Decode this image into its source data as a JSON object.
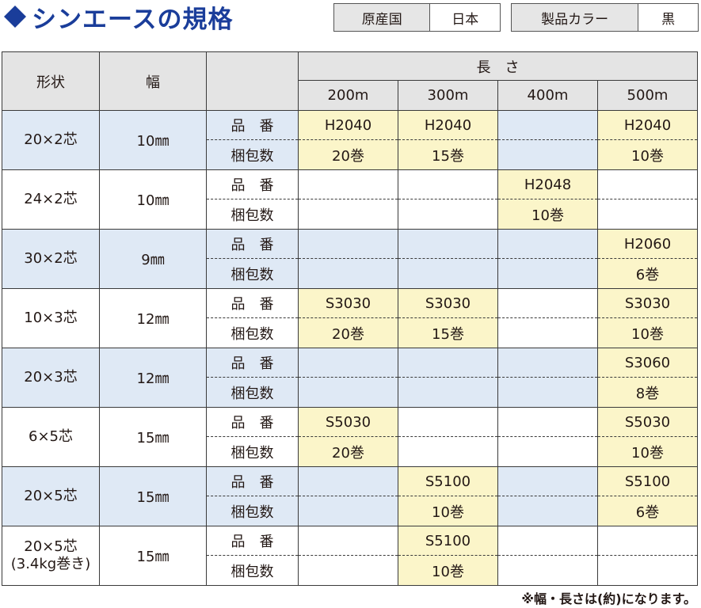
{
  "title": "シンエースの規格",
  "info": {
    "origin_label": "原産国",
    "origin_value": "日本",
    "color_label": "製品カラー",
    "color_value": "黒"
  },
  "table": {
    "headers": {
      "shape": "形状",
      "width": "幅",
      "length": "長　さ",
      "lengths": [
        "200m",
        "300m",
        "400m",
        "500m"
      ]
    },
    "row_labels": {
      "part": "品　番",
      "pack": "梱包数"
    },
    "rows": [
      {
        "shape": "20×2芯",
        "width": "10㎜",
        "shade": "blue",
        "part": [
          "H2040",
          "H2040",
          "",
          "H2040"
        ],
        "pack": [
          "20巻",
          "15巻",
          "",
          "10巻"
        ]
      },
      {
        "shape": "24×2芯",
        "width": "10㎜",
        "shade": "white",
        "part": [
          "",
          "",
          "H2048",
          ""
        ],
        "pack": [
          "",
          "",
          "10巻",
          ""
        ]
      },
      {
        "shape": "30×2芯",
        "width": "9㎜",
        "shade": "blue",
        "part": [
          "",
          "",
          "",
          "H2060"
        ],
        "pack": [
          "",
          "",
          "",
          "6巻"
        ]
      },
      {
        "shape": "10×3芯",
        "width": "12㎜",
        "shade": "white",
        "part": [
          "S3030",
          "S3030",
          "",
          "S3030"
        ],
        "pack": [
          "20巻",
          "15巻",
          "",
          "10巻"
        ]
      },
      {
        "shape": "20×3芯",
        "width": "12㎜",
        "shade": "blue",
        "part": [
          "",
          "",
          "",
          "S3060"
        ],
        "pack": [
          "",
          "",
          "",
          "8巻"
        ]
      },
      {
        "shape": "6×5芯",
        "width": "15㎜",
        "shade": "white",
        "part": [
          "S5030",
          "",
          "",
          "S5030"
        ],
        "pack": [
          "20巻",
          "",
          "",
          "10巻"
        ]
      },
      {
        "shape": "20×5芯",
        "width": "15㎜",
        "shade": "blue",
        "part": [
          "",
          "S5100",
          "",
          "S5100"
        ],
        "pack": [
          "",
          "10巻",
          "",
          "6巻"
        ]
      },
      {
        "shape": "20×5芯",
        "shape_sub": "(3.4kg巻き)",
        "width": "15㎜",
        "shade": "white",
        "part": [
          "",
          "S5100",
          "",
          ""
        ],
        "pack": [
          "",
          "10巻",
          "",
          ""
        ]
      }
    ]
  },
  "note": "※幅・長さは(約)になります。",
  "colors": {
    "title": "#1a3d9a",
    "row_blue": "#dfe9f5",
    "filled_cell": "#fbf5c9",
    "header_gray": "#e4e4e4"
  }
}
